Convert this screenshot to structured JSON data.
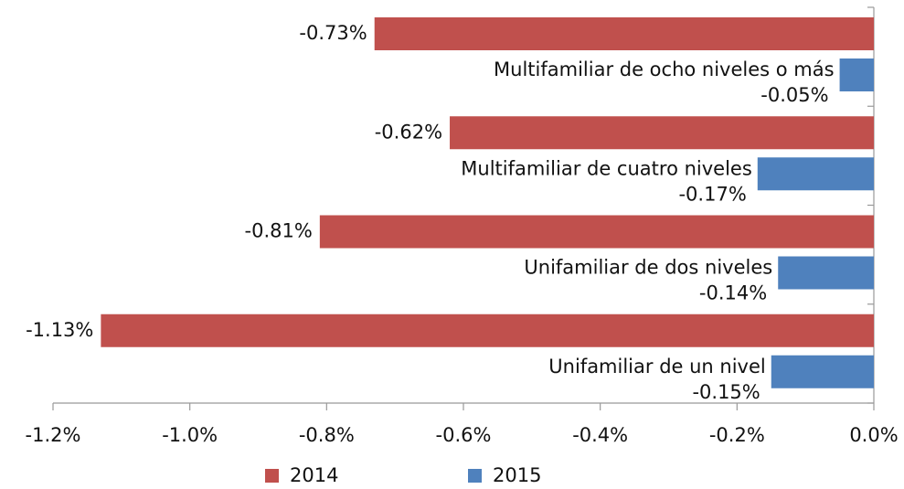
{
  "chart_data": {
    "type": "bar",
    "orientation": "horizontal",
    "categories": [
      "Multifamiliar de ocho niveles o más",
      "Multifamiliar de cuatro niveles",
      "Unifamiliar de dos niveles",
      "Unifamiliar de un nivel"
    ],
    "series": [
      {
        "name": "2014",
        "color": "#c0504d",
        "values": [
          -0.73,
          -0.62,
          -0.81,
          -1.13
        ],
        "value_labels": [
          "-0.73%",
          "-0.62%",
          "-0.81%",
          "-1.13%"
        ]
      },
      {
        "name": "2015",
        "color": "#4f81bd",
        "values": [
          -0.05,
          -0.17,
          -0.14,
          -0.15
        ],
        "value_labels": [
          "-0.05%",
          "-0.17%",
          "-0.14%",
          "-0.15%"
        ]
      }
    ],
    "xlim": [
      -1.2,
      0
    ],
    "xticks": [
      {
        "value": -1.2,
        "label": "-1.2%"
      },
      {
        "value": -1.0,
        "label": "-1.0%"
      },
      {
        "value": -0.8,
        "label": "-0.8%"
      },
      {
        "value": -0.6,
        "label": "-0.6%"
      },
      {
        "value": -0.4,
        "label": "-0.4%"
      },
      {
        "value": -0.2,
        "label": "-0.2%"
      },
      {
        "value": 0,
        "label": "0.0%"
      }
    ],
    "grid": false,
    "legend": "bottom"
  }
}
